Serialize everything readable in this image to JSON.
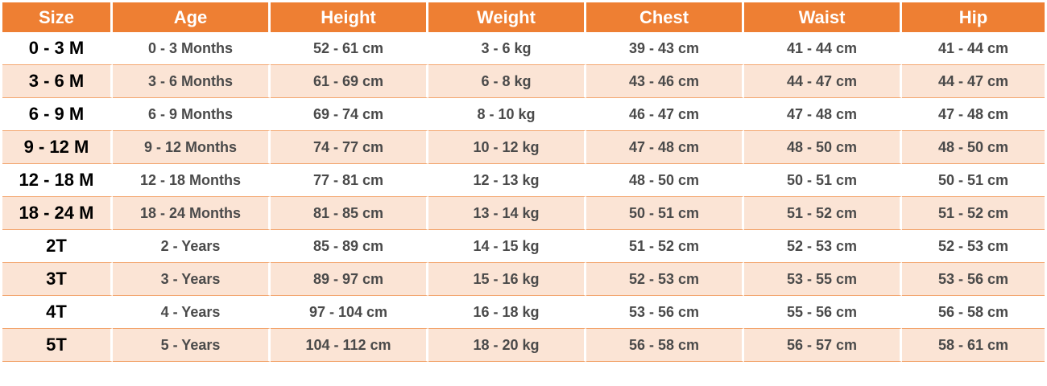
{
  "headers": [
    "Size",
    "Age",
    "Height",
    "Weight",
    "Chest",
    "Waist",
    "Hip"
  ],
  "rows": [
    [
      "0 - 3 M",
      "0 - 3 Months",
      "52 - 61 cm",
      "3 - 6 kg",
      "39 - 43 cm",
      "41 - 44 cm",
      "41 - 44 cm"
    ],
    [
      "3 - 6 M",
      "3 - 6 Months",
      "61 - 69 cm",
      "6 - 8 kg",
      "43 - 46 cm",
      "44 - 47 cm",
      "44 - 47 cm"
    ],
    [
      "6 - 9 M",
      "6 - 9 Months",
      "69 - 74 cm",
      "8 - 10 kg",
      "46 - 47 cm",
      "47 - 48 cm",
      "47 - 48 cm"
    ],
    [
      "9 - 12 M",
      "9 - 12 Months",
      "74 - 77 cm",
      "10 - 12 kg",
      "47 - 48 cm",
      "48 - 50 cm",
      "48 - 50 cm"
    ],
    [
      "12 - 18 M",
      "12 - 18 Months",
      "77 - 81 cm",
      "12 - 13 kg",
      "48 - 50 cm",
      "50 - 51 cm",
      "50 - 51 cm"
    ],
    [
      "18 - 24 M",
      "18 - 24 Months",
      "81 - 85 cm",
      "13 - 14 kg",
      "50 - 51 cm",
      "51 - 52 cm",
      "51 - 52 cm"
    ],
    [
      "2T",
      "2 -  Years",
      "85 - 89 cm",
      "14 - 15 kg",
      "51 - 52 cm",
      "52 - 53 cm",
      "52 - 53 cm"
    ],
    [
      "3T",
      "3 -  Years",
      "89 - 97 cm",
      "15 - 16 kg",
      "52 - 53 cm",
      "53 - 55 cm",
      "53 - 56 cm"
    ],
    [
      "4T",
      "4 -  Years",
      "97 - 104 cm",
      "16 - 18 kg",
      "53 - 56 cm",
      "55 - 56 cm",
      "56 - 58 cm"
    ],
    [
      "5T",
      "5 -  Years",
      "104 - 112 cm",
      "18 - 20 kg",
      "56 - 58 cm",
      "56 - 57 cm",
      "58 - 61 cm"
    ]
  ],
  "colors": {
    "header_bg": "#ee7f33",
    "header_text": "#ffffff",
    "stripe_bg": "#fbe4d5",
    "row_divider": "#f3a66f"
  }
}
